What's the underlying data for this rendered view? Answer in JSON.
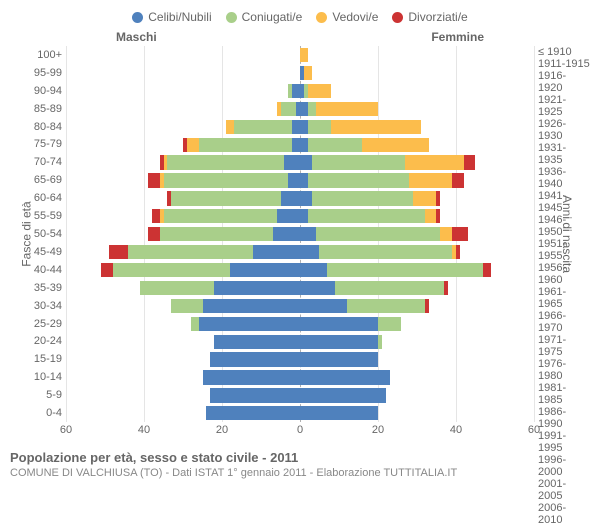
{
  "chart": {
    "type": "population-pyramid",
    "legend": [
      {
        "label": "Celibi/Nubili",
        "color": "#4f81bd"
      },
      {
        "label": "Coniugati/e",
        "color": "#a9cf8a"
      },
      {
        "label": "Vedovi/e",
        "color": "#fcbd4c"
      },
      {
        "label": "Divorziati/e",
        "color": "#cc3333"
      }
    ],
    "side_labels": {
      "left": "Maschi",
      "right": "Femmine"
    },
    "y_axis_left_title": "Fasce di età",
    "y_axis_right_title": "Anni di nascita",
    "age_bands": [
      "100+",
      "95-99",
      "90-94",
      "85-89",
      "80-84",
      "75-79",
      "70-74",
      "65-69",
      "60-64",
      "55-59",
      "50-54",
      "45-49",
      "40-44",
      "35-39",
      "30-34",
      "25-29",
      "20-24",
      "15-19",
      "10-14",
      "5-9",
      "0-4"
    ],
    "birth_cohorts": [
      "≤ 1910",
      "1911-1915",
      "1916-1920",
      "1921-1925",
      "1926-1930",
      "1931-1935",
      "1936-1940",
      "1941-1945",
      "1946-1950",
      "1951-1955",
      "1956-1960",
      "1961-1965",
      "1966-1970",
      "1971-1975",
      "1976-1980",
      "1981-1985",
      "1986-1990",
      "1991-1995",
      "1996-2000",
      "2001-2005",
      "2006-2010"
    ],
    "x_axis": {
      "max": 60,
      "ticks": [
        60,
        40,
        20,
        0,
        20,
        40,
        60
      ]
    },
    "series_order": [
      "celibi",
      "coniugati",
      "vedovi",
      "divorziati"
    ],
    "colors": {
      "celibi": "#4f81bd",
      "coniugati": "#a9cf8a",
      "vedovi": "#fcbd4c",
      "divorziati": "#cc3333"
    },
    "rows": [
      {
        "male": {
          "celibi": 0,
          "coniugati": 0,
          "vedovi": 0,
          "divorziati": 0
        },
        "female": {
          "celibi": 0,
          "coniugati": 0,
          "vedovi": 2,
          "divorziati": 0
        }
      },
      {
        "male": {
          "celibi": 0,
          "coniugati": 0,
          "vedovi": 0,
          "divorziati": 0
        },
        "female": {
          "celibi": 1,
          "coniugati": 0,
          "vedovi": 2,
          "divorziati": 0
        }
      },
      {
        "male": {
          "celibi": 2,
          "coniugati": 1,
          "vedovi": 0,
          "divorziati": 0
        },
        "female": {
          "celibi": 1,
          "coniugati": 1,
          "vedovi": 6,
          "divorziati": 0
        }
      },
      {
        "male": {
          "celibi": 1,
          "coniugati": 4,
          "vedovi": 1,
          "divorziati": 0
        },
        "female": {
          "celibi": 2,
          "coniugati": 2,
          "vedovi": 16,
          "divorziati": 0
        }
      },
      {
        "male": {
          "celibi": 2,
          "coniugati": 15,
          "vedovi": 2,
          "divorziati": 0
        },
        "female": {
          "celibi": 2,
          "coniugati": 6,
          "vedovi": 23,
          "divorziati": 0
        }
      },
      {
        "male": {
          "celibi": 2,
          "coniugati": 24,
          "vedovi": 3,
          "divorziati": 1
        },
        "female": {
          "celibi": 2,
          "coniugati": 14,
          "vedovi": 17,
          "divorziati": 0
        }
      },
      {
        "male": {
          "celibi": 4,
          "coniugati": 30,
          "vedovi": 1,
          "divorziati": 1
        },
        "female": {
          "celibi": 3,
          "coniugati": 24,
          "vedovi": 15,
          "divorziati": 3
        }
      },
      {
        "male": {
          "celibi": 3,
          "coniugati": 32,
          "vedovi": 1,
          "divorziati": 3
        },
        "female": {
          "celibi": 2,
          "coniugati": 26,
          "vedovi": 11,
          "divorziati": 3
        }
      },
      {
        "male": {
          "celibi": 5,
          "coniugati": 28,
          "vedovi": 0,
          "divorziati": 1
        },
        "female": {
          "celibi": 3,
          "coniugati": 26,
          "vedovi": 6,
          "divorziati": 1
        }
      },
      {
        "male": {
          "celibi": 6,
          "coniugati": 29,
          "vedovi": 1,
          "divorziati": 2
        },
        "female": {
          "celibi": 2,
          "coniugati": 30,
          "vedovi": 3,
          "divorziati": 1
        }
      },
      {
        "male": {
          "celibi": 7,
          "coniugati": 29,
          "vedovi": 0,
          "divorziati": 3
        },
        "female": {
          "celibi": 4,
          "coniugati": 32,
          "vedovi": 3,
          "divorziati": 4
        }
      },
      {
        "male": {
          "celibi": 12,
          "coniugati": 32,
          "vedovi": 0,
          "divorziati": 5
        },
        "female": {
          "celibi": 5,
          "coniugati": 34,
          "vedovi": 1,
          "divorziati": 1
        }
      },
      {
        "male": {
          "celibi": 18,
          "coniugati": 30,
          "vedovi": 0,
          "divorziati": 3
        },
        "female": {
          "celibi": 7,
          "coniugati": 40,
          "vedovi": 0,
          "divorziati": 2
        }
      },
      {
        "male": {
          "celibi": 22,
          "coniugati": 19,
          "vedovi": 0,
          "divorziati": 0
        },
        "female": {
          "celibi": 9,
          "coniugati": 28,
          "vedovi": 0,
          "divorziati": 1
        }
      },
      {
        "male": {
          "celibi": 25,
          "coniugati": 8,
          "vedovi": 0,
          "divorziati": 0
        },
        "female": {
          "celibi": 12,
          "coniugati": 20,
          "vedovi": 0,
          "divorziati": 1
        }
      },
      {
        "male": {
          "celibi": 26,
          "coniugati": 2,
          "vedovi": 0,
          "divorziati": 0
        },
        "female": {
          "celibi": 20,
          "coniugati": 6,
          "vedovi": 0,
          "divorziati": 0
        }
      },
      {
        "male": {
          "celibi": 22,
          "coniugati": 0,
          "vedovi": 0,
          "divorziati": 0
        },
        "female": {
          "celibi": 20,
          "coniugati": 1,
          "vedovi": 0,
          "divorziati": 0
        }
      },
      {
        "male": {
          "celibi": 23,
          "coniugati": 0,
          "vedovi": 0,
          "divorziati": 0
        },
        "female": {
          "celibi": 20,
          "coniugati": 0,
          "vedovi": 0,
          "divorziati": 0
        }
      },
      {
        "male": {
          "celibi": 25,
          "coniugati": 0,
          "vedovi": 0,
          "divorziati": 0
        },
        "female": {
          "celibi": 23,
          "coniugati": 0,
          "vedovi": 0,
          "divorziati": 0
        }
      },
      {
        "male": {
          "celibi": 23,
          "coniugati": 0,
          "vedovi": 0,
          "divorziati": 0
        },
        "female": {
          "celibi": 22,
          "coniugati": 0,
          "vedovi": 0,
          "divorziati": 0
        }
      },
      {
        "male": {
          "celibi": 24,
          "coniugati": 0,
          "vedovi": 0,
          "divorziati": 0
        },
        "female": {
          "celibi": 20,
          "coniugati": 0,
          "vedovi": 0,
          "divorziati": 0
        }
      }
    ],
    "grid_color": "#e5e5e5",
    "centerline_color": "#b0b0b0",
    "background_color": "#ffffff"
  },
  "footer": {
    "title": "Popolazione per età, sesso e stato civile - 2011",
    "subtitle": "COMUNE DI VALCHIUSA (TO) - Dati ISTAT 1° gennaio 2011 - Elaborazione TUTTITALIA.IT"
  }
}
